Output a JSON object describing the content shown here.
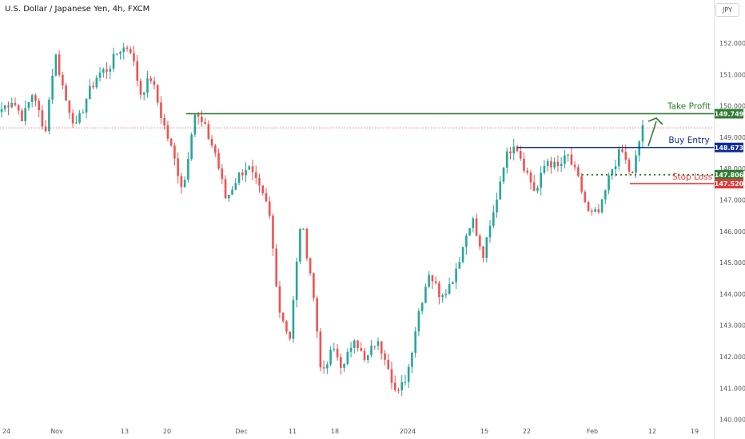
{
  "header": {
    "title": "U.S. Dollar / Japanese Yen, 4h, FXCM",
    "currency_button": "JPY"
  },
  "colors": {
    "up": "#26a69a",
    "down": "#ef5350",
    "take_profit": "#2e7d32",
    "buy_entry": "#0d2c9e",
    "stop_loss": "#e53935",
    "last_price_line": "#ef5350"
  },
  "chart_data": {
    "type": "candlestick",
    "title": "U.S. Dollar / Japanese Yen, 4h, FXCM",
    "y_ticks": [
      "152.000",
      "151.000",
      "150.000",
      "149.000",
      "148.000",
      "147.000",
      "146.000",
      "145.000",
      "144.000",
      "143.000",
      "142.000",
      "141.000",
      "140.000"
    ],
    "x_ticks": [
      "24",
      "Nov",
      "13",
      "20",
      "Dec",
      "11",
      "18",
      "2024",
      "15",
      "22",
      "Feb",
      "12",
      "19"
    ],
    "ylim": [
      140.0,
      152.9
    ],
    "levels": [
      {
        "name": "Take Profit",
        "value": 149.749,
        "label": "149.749",
        "style": "solid"
      },
      {
        "name": "Buy Entry",
        "value": 148.673,
        "label": "148.673",
        "style": "solid"
      },
      {
        "name": "Stop Loss",
        "value": 147.806,
        "label": "147.806",
        "style": "dotted"
      },
      {
        "name": "Stop Loss",
        "value": 147.52,
        "label": "147.520",
        "style": "solid"
      }
    ],
    "price_path": [
      149.9,
      150.2,
      149.6,
      150.5,
      149.0,
      151.7,
      150.2,
      149.3,
      150.3,
      151.0,
      151.2,
      151.8,
      151.9,
      150.4,
      150.9,
      149.6,
      148.5,
      147.3,
      149.8,
      149.3,
      148.5,
      147.0,
      147.7,
      148.1,
      147.4,
      146.7,
      143.5,
      142.6,
      146.4,
      144.5,
      141.3,
      142.3,
      141.6,
      142.7,
      141.8,
      142.5,
      142.0,
      140.7,
      141.5,
      143.4,
      144.7,
      144.0,
      144.3,
      145.3,
      146.5,
      145.1,
      146.5,
      148.2,
      148.9,
      148.0,
      147.2,
      148.3,
      148.0,
      148.4,
      147.6,
      146.5,
      146.6,
      147.9,
      148.6,
      147.7,
      149.4
    ]
  }
}
